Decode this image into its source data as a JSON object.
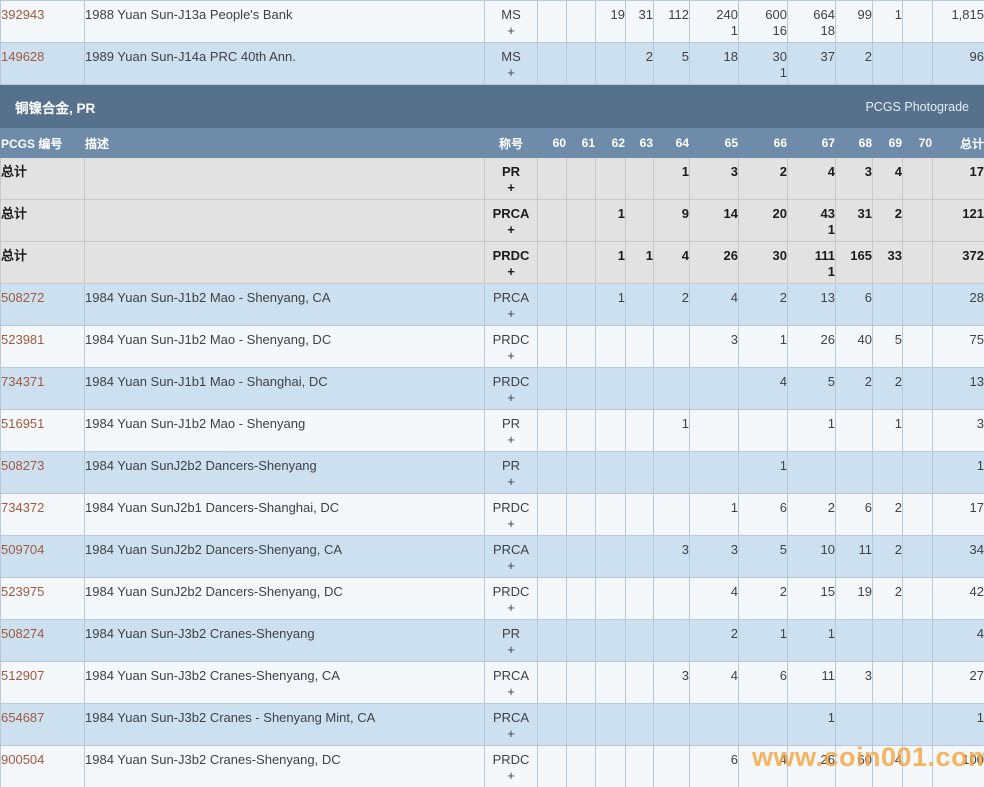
{
  "section": {
    "title": "铜镍合金, PR",
    "photograde_label": "PCGS Photograde"
  },
  "columns": {
    "number": "PCGS 编号",
    "description": "描述",
    "designation": "称号",
    "grades": [
      "60",
      "61",
      "62",
      "63",
      "64",
      "65",
      "66",
      "67",
      "68",
      "69",
      "70"
    ],
    "total": "总计"
  },
  "top_rows": [
    {
      "num": "392943",
      "desc": "1988 Yuan Sun-J13a People's Bank",
      "desig": "MS",
      "plus": "+",
      "g": [
        "",
        "",
        "19",
        "31",
        "112",
        "240",
        "600",
        "664",
        "99",
        "1",
        ""
      ],
      "g2": [
        "",
        "",
        "",
        "",
        "",
        "1",
        "16",
        "18",
        "",
        "",
        ""
      ],
      "total": "1,815",
      "bg": "light"
    },
    {
      "num": "149628",
      "desc": "1989 Yuan Sun-J14a PRC 40th Ann.",
      "desig": "MS",
      "plus": "+",
      "g": [
        "",
        "",
        "",
        "2",
        "5",
        "18",
        "30",
        "37",
        "2",
        "",
        ""
      ],
      "g2": [
        "",
        "",
        "",
        "",
        "",
        "",
        "1",
        "",
        "",
        "",
        ""
      ],
      "total": "96",
      "bg": "blue"
    }
  ],
  "summary_rows": [
    {
      "num": "总计",
      "desc": "",
      "desig": "PR",
      "plus": "+",
      "g": [
        "",
        "",
        "",
        "",
        "1",
        "3",
        "2",
        "4",
        "3",
        "4",
        ""
      ],
      "g2": [
        "",
        "",
        "",
        "",
        "",
        "",
        "",
        "",
        "",
        "",
        ""
      ],
      "total": "17",
      "bg": "gray"
    },
    {
      "num": "总计",
      "desc": "",
      "desig": "PRCA",
      "plus": "+",
      "g": [
        "",
        "",
        "1",
        "",
        "9",
        "14",
        "20",
        "43",
        "31",
        "2",
        ""
      ],
      "g2": [
        "",
        "",
        "",
        "",
        "",
        "",
        "",
        "1",
        "",
        "",
        ""
      ],
      "total": "121",
      "bg": "gray"
    },
    {
      "num": "总计",
      "desc": "",
      "desig": "PRDC",
      "plus": "+",
      "g": [
        "",
        "",
        "1",
        "1",
        "4",
        "26",
        "30",
        "111",
        "165",
        "33",
        ""
      ],
      "g2": [
        "",
        "",
        "",
        "",
        "",
        "",
        "",
        "1",
        "",
        "",
        ""
      ],
      "total": "372",
      "bg": "gray"
    }
  ],
  "rows": [
    {
      "num": "508272",
      "desc": "1984 Yuan Sun-J1b2 Mao - Shenyang, CA",
      "desig": "PRCA",
      "plus": "+",
      "g": [
        "",
        "",
        "1",
        "",
        "2",
        "4",
        "2",
        "13",
        "6",
        "",
        ""
      ],
      "g2": [
        "",
        "",
        "",
        "",
        "",
        "",
        "",
        "",
        "",
        "",
        ""
      ],
      "total": "28",
      "bg": "blue"
    },
    {
      "num": "523981",
      "desc": "1984 Yuan Sun-J1b2 Mao - Shenyang, DC",
      "desig": "PRDC",
      "plus": "+",
      "g": [
        "",
        "",
        "",
        "",
        "",
        "3",
        "1",
        "26",
        "40",
        "5",
        ""
      ],
      "g2": [
        "",
        "",
        "",
        "",
        "",
        "",
        "",
        "",
        "",
        "",
        ""
      ],
      "total": "75",
      "bg": "light"
    },
    {
      "num": "734371",
      "desc": "1984 Yuan Sun-J1b1 Mao - Shanghai, DC",
      "desig": "PRDC",
      "plus": "+",
      "g": [
        "",
        "",
        "",
        "",
        "",
        "",
        "4",
        "5",
        "2",
        "2",
        ""
      ],
      "g2": [
        "",
        "",
        "",
        "",
        "",
        "",
        "",
        "",
        "",
        "",
        ""
      ],
      "total": "13",
      "bg": "blue"
    },
    {
      "num": "516951",
      "desc": "1984 Yuan Sun-J1b2 Mao - Shenyang",
      "desig": "PR",
      "plus": "+",
      "g": [
        "",
        "",
        "",
        "",
        "1",
        "",
        "",
        "1",
        "",
        "1",
        ""
      ],
      "g2": [
        "",
        "",
        "",
        "",
        "",
        "",
        "",
        "",
        "",
        "",
        ""
      ],
      "total": "3",
      "bg": "light"
    },
    {
      "num": "508273",
      "desc": "1984 Yuan SunJ2b2 Dancers-Shenyang",
      "desig": "PR",
      "plus": "+",
      "g": [
        "",
        "",
        "",
        "",
        "",
        "",
        "1",
        "",
        "",
        "",
        ""
      ],
      "g2": [
        "",
        "",
        "",
        "",
        "",
        "",
        "",
        "",
        "",
        "",
        ""
      ],
      "total": "1",
      "bg": "blue"
    },
    {
      "num": "734372",
      "desc": "1984 Yuan SunJ2b1 Dancers-Shanghai, DC",
      "desig": "PRDC",
      "plus": "+",
      "g": [
        "",
        "",
        "",
        "",
        "",
        "1",
        "6",
        "2",
        "6",
        "2",
        ""
      ],
      "g2": [
        "",
        "",
        "",
        "",
        "",
        "",
        "",
        "",
        "",
        "",
        ""
      ],
      "total": "17",
      "bg": "light"
    },
    {
      "num": "509704",
      "desc": "1984 Yuan SunJ2b2 Dancers-Shenyang, CA",
      "desig": "PRCA",
      "plus": "+",
      "g": [
        "",
        "",
        "",
        "",
        "3",
        "3",
        "5",
        "10",
        "11",
        "2",
        ""
      ],
      "g2": [
        "",
        "",
        "",
        "",
        "",
        "",
        "",
        "",
        "",
        "",
        ""
      ],
      "total": "34",
      "bg": "blue"
    },
    {
      "num": "523975",
      "desc": "1984 Yuan SunJ2b2 Dancers-Shenyang, DC",
      "desig": "PRDC",
      "plus": "+",
      "g": [
        "",
        "",
        "",
        "",
        "",
        "4",
        "2",
        "15",
        "19",
        "2",
        ""
      ],
      "g2": [
        "",
        "",
        "",
        "",
        "",
        "",
        "",
        "",
        "",
        "",
        ""
      ],
      "total": "42",
      "bg": "light"
    },
    {
      "num": "508274",
      "desc": "1984 Yuan Sun-J3b2 Cranes-Shenyang",
      "desig": "PR",
      "plus": "+",
      "g": [
        "",
        "",
        "",
        "",
        "",
        "2",
        "1",
        "1",
        "",
        "",
        ""
      ],
      "g2": [
        "",
        "",
        "",
        "",
        "",
        "",
        "",
        "",
        "",
        "",
        ""
      ],
      "total": "4",
      "bg": "blue"
    },
    {
      "num": "512907",
      "desc": "1984 Yuan Sun-J3b2 Cranes-Shenyang, CA",
      "desig": "PRCA",
      "plus": "+",
      "g": [
        "",
        "",
        "",
        "",
        "3",
        "4",
        "6",
        "11",
        "3",
        "",
        ""
      ],
      "g2": [
        "",
        "",
        "",
        "",
        "",
        "",
        "",
        "",
        "",
        "",
        ""
      ],
      "total": "27",
      "bg": "light"
    },
    {
      "num": "654687",
      "desc": "1984 Yuan Sun-J3b2 Cranes - Shenyang Mint, CA",
      "desig": "PRCA",
      "plus": "+",
      "g": [
        "",
        "",
        "",
        "",
        "",
        "",
        "",
        "1",
        "",
        "",
        ""
      ],
      "g2": [
        "",
        "",
        "",
        "",
        "",
        "",
        "",
        "",
        "",
        "",
        ""
      ],
      "total": "1",
      "bg": "blue"
    },
    {
      "num": "900504",
      "desc": "1984 Yuan Sun-J3b2 Cranes-Shenyang, DC",
      "desig": "PRDC",
      "plus": "+",
      "g": [
        "",
        "",
        "",
        "",
        "",
        "6",
        "4",
        "26",
        "60",
        "4",
        ""
      ],
      "g2": [
        "",
        "",
        "",
        "",
        "",
        "",
        "",
        "",
        "",
        "",
        ""
      ],
      "total": "100",
      "bg": "light"
    }
  ],
  "watermark": {
    "text": "www.coin001.com"
  },
  "colors": {
    "section_bar": "#56718c",
    "header_row": "#6e8caa",
    "row_blue": "#cde0f0",
    "row_light": "#f4f8fb",
    "row_gray": "#e2e2e2",
    "link": "#a2593d",
    "watermark": "#f5a23c"
  }
}
